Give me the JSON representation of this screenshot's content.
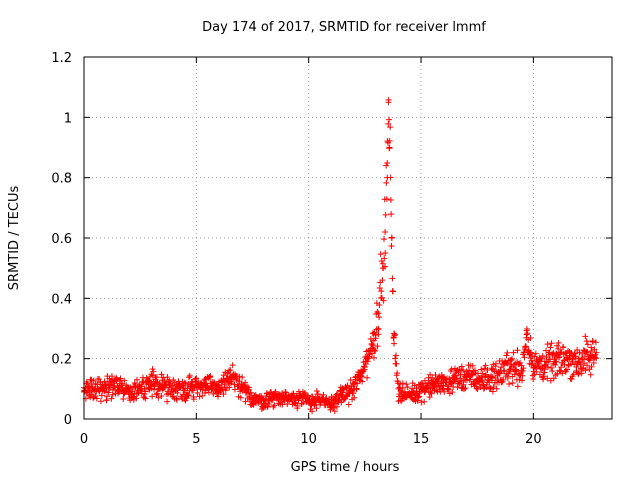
{
  "chart_data": {
    "type": "scatter",
    "title": "Day 174 of 2017, SRMTID for receiver lmmf",
    "xlabel": "GPS time / hours",
    "ylabel": "SRMTID / TECUs",
    "xlim": [
      0,
      23.5
    ],
    "ylim": [
      0,
      1.2
    ],
    "xticks": [
      0,
      5,
      10,
      15,
      20
    ],
    "xtick_labels": [
      "0",
      "5",
      "10",
      "15",
      "20"
    ],
    "yticks": [
      0,
      0.2,
      0.4,
      0.6,
      0.8,
      1.0,
      1.2
    ],
    "ytick_labels": [
      "0",
      "0.2",
      "0.4",
      "0.6",
      "0.8",
      "1",
      "1.2"
    ],
    "grid": true,
    "marker": "+",
    "color": "#ff0000",
    "series": [
      {
        "name": "SRMTID",
        "x": [
          0.0,
          0.5,
          1.0,
          1.5,
          2.0,
          2.5,
          3.0,
          3.5,
          4.0,
          4.5,
          5.0,
          5.5,
          6.0,
          6.5,
          7.0,
          7.5,
          8.0,
          8.5,
          9.0,
          9.5,
          10.0,
          10.5,
          11.0,
          11.5,
          12.0,
          12.3,
          12.6,
          12.9,
          13.1,
          13.3,
          13.4,
          13.5,
          13.55,
          13.6,
          13.7,
          13.8,
          14.0,
          14.3,
          14.6,
          15.0,
          15.5,
          16.0,
          16.5,
          17.0,
          17.5,
          18.0,
          18.5,
          19.0,
          19.5,
          19.7,
          20.0,
          20.5,
          21.0,
          21.5,
          22.0,
          22.5,
          22.8
        ],
        "y": [
          0.09,
          0.1,
          0.1,
          0.11,
          0.1,
          0.1,
          0.12,
          0.11,
          0.1,
          0.1,
          0.11,
          0.11,
          0.1,
          0.14,
          0.1,
          0.07,
          0.06,
          0.07,
          0.07,
          0.07,
          0.06,
          0.06,
          0.05,
          0.08,
          0.1,
          0.14,
          0.2,
          0.26,
          0.35,
          0.5,
          0.62,
          0.8,
          1.05,
          0.9,
          0.6,
          0.25,
          0.1,
          0.08,
          0.08,
          0.1,
          0.11,
          0.12,
          0.13,
          0.14,
          0.13,
          0.13,
          0.15,
          0.18,
          0.16,
          0.28,
          0.17,
          0.18,
          0.19,
          0.2,
          0.19,
          0.2,
          0.22
        ],
        "spread": [
          0.04,
          0.04,
          0.04,
          0.04,
          0.04,
          0.04,
          0.05,
          0.04,
          0.04,
          0.04,
          0.04,
          0.04,
          0.04,
          0.05,
          0.04,
          0.03,
          0.03,
          0.03,
          0.03,
          0.03,
          0.03,
          0.03,
          0.03,
          0.03,
          0.04,
          0.05,
          0.06,
          0.07,
          0.1,
          0.12,
          0.15,
          0.18,
          0.04,
          0.18,
          0.15,
          0.08,
          0.04,
          0.03,
          0.03,
          0.04,
          0.04,
          0.04,
          0.05,
          0.05,
          0.04,
          0.05,
          0.05,
          0.06,
          0.06,
          0.05,
          0.06,
          0.06,
          0.06,
          0.06,
          0.07,
          0.07,
          0.06
        ]
      }
    ]
  }
}
